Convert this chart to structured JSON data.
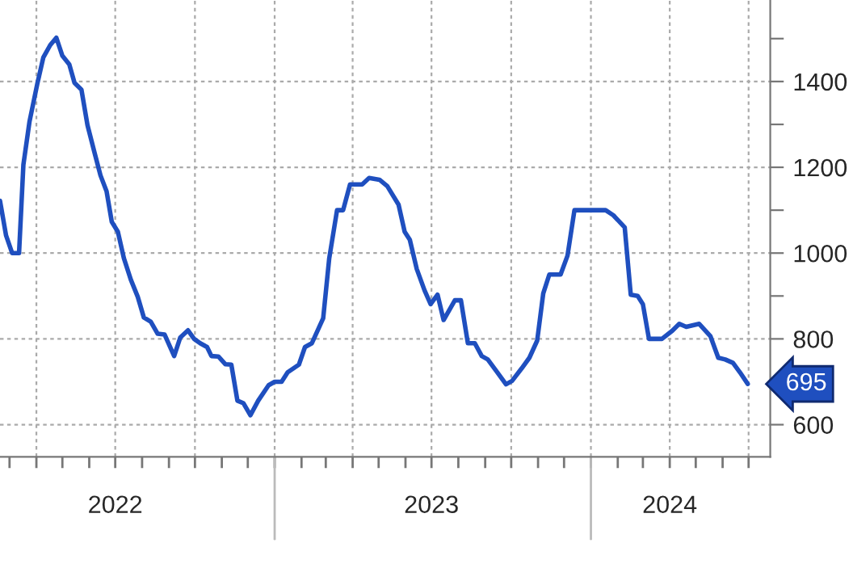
{
  "chart_data": {
    "type": "line",
    "x": [
      "2022-02-18",
      "2022-02-25",
      "2022-03-04",
      "2022-03-12",
      "2022-03-17",
      "2022-03-24",
      "2022-04-02",
      "2022-04-09",
      "2022-04-17",
      "2022-04-24",
      "2022-05-01",
      "2022-05-09",
      "2022-05-15",
      "2022-05-23",
      "2022-05-30",
      "2022-06-07",
      "2022-06-14",
      "2022-06-21",
      "2022-06-27",
      "2022-07-04",
      "2022-07-11",
      "2022-07-19",
      "2022-07-27",
      "2022-08-03",
      "2022-08-11",
      "2022-08-19",
      "2022-08-27",
      "2022-09-07",
      "2022-09-14",
      "2022-09-23",
      "2022-09-30",
      "2022-10-07",
      "2022-10-15",
      "2022-10-20",
      "2022-10-28",
      "2022-11-05",
      "2022-11-12",
      "2022-11-19",
      "2022-11-26",
      "2022-12-04",
      "2022-12-13",
      "2022-12-25",
      "2023-01-01",
      "2023-01-09",
      "2023-01-16",
      "2023-01-29",
      "2023-02-05",
      "2023-02-13",
      "2023-02-26",
      "2023-03-05",
      "2023-03-14",
      "2023-03-21",
      "2023-03-29",
      "2023-04-12",
      "2023-04-20",
      "2023-05-02",
      "2023-05-11",
      "2023-05-24",
      "2023-05-31",
      "2023-06-06",
      "2023-06-14",
      "2023-06-23",
      "2023-06-30",
      "2023-07-08",
      "2023-07-15",
      "2023-07-28",
      "2023-08-04",
      "2023-08-12",
      "2023-08-20",
      "2023-08-28",
      "2023-09-04",
      "2023-09-15",
      "2023-09-25",
      "2023-10-02",
      "2023-10-13",
      "2023-10-22",
      "2023-10-31",
      "2023-11-07",
      "2023-11-14",
      "2023-11-27",
      "2023-12-05",
      "2023-12-13",
      "2024-01-18",
      "2024-01-27",
      "2024-02-09",
      "2024-02-16",
      "2024-02-24",
      "2024-03-01",
      "2024-03-08",
      "2024-03-23",
      "2024-04-04",
      "2024-04-12",
      "2024-04-20",
      "2024-05-05",
      "2024-05-18",
      "2024-05-27",
      "2024-06-04",
      "2024-06-13",
      "2024-06-21",
      "2024-06-30"
    ],
    "series": [
      {
        "color": "#1f4fbf",
        "values": [
          1122,
          1041,
          1000,
          1000,
          1206,
          1306,
          1394,
          1456,
          1485,
          1502,
          1460,
          1440,
          1397,
          1381,
          1298,
          1235,
          1181,
          1144,
          1073,
          1050,
          988,
          938,
          898,
          850,
          840,
          812,
          810,
          760,
          803,
          820,
          800,
          790,
          781,
          760,
          759,
          741,
          740,
          656,
          650,
          622,
          656,
          692,
          700,
          700,
          722,
          740,
          781,
          790,
          848,
          988,
          1100,
          1100,
          1160,
          1160,
          1175,
          1171,
          1156,
          1113,
          1050,
          1031,
          963,
          913,
          881,
          903,
          844,
          890,
          890,
          790,
          790,
          760,
          752,
          722,
          694,
          702,
          731,
          756,
          796,
          906,
          950,
          950,
          994,
          1100,
          1100,
          1088,
          1060,
          903,
          900,
          881,
          800,
          800,
          819,
          835,
          828,
          835,
          806,
          756,
          752,
          744,
          722,
          695
        ]
      }
    ],
    "xlim": [
      "2022-02-18",
      "2024-07-26"
    ],
    "xticks": [
      {
        "value": "2022-03-01",
        "label": null
      },
      {
        "value": "2022-04-01",
        "label": null
      },
      {
        "value": "2022-05-01",
        "label": null
      },
      {
        "value": "2022-06-01",
        "label": null
      },
      {
        "value": "2022-07-01",
        "label": "2022"
      },
      {
        "value": "2022-08-01",
        "label": null
      },
      {
        "value": "2022-09-01",
        "label": null
      },
      {
        "value": "2022-10-01",
        "label": null
      },
      {
        "value": "2022-11-01",
        "label": null
      },
      {
        "value": "2022-12-01",
        "label": null
      },
      {
        "value": "2023-01-01",
        "label": null
      },
      {
        "value": "2023-02-01",
        "label": null
      },
      {
        "value": "2023-03-01",
        "label": null
      },
      {
        "value": "2023-04-01",
        "label": null
      },
      {
        "value": "2023-05-01",
        "label": null
      },
      {
        "value": "2023-06-01",
        "label": null
      },
      {
        "value": "2023-07-01",
        "label": "2023"
      },
      {
        "value": "2023-08-01",
        "label": null
      },
      {
        "value": "2023-09-01",
        "label": null
      },
      {
        "value": "2023-10-01",
        "label": null
      },
      {
        "value": "2023-11-01",
        "label": null
      },
      {
        "value": "2023-12-01",
        "label": null
      },
      {
        "value": "2024-01-01",
        "label": null
      },
      {
        "value": "2024-02-01",
        "label": null
      },
      {
        "value": "2024-03-01",
        "label": null
      },
      {
        "value": "2024-04-01",
        "label": "2024"
      },
      {
        "value": "2024-05-01",
        "label": null
      },
      {
        "value": "2024-06-01",
        "label": null
      },
      {
        "value": "2024-07-01",
        "label": null
      }
    ],
    "ylim": [
      525,
      1590
    ],
    "yticks": [
      600,
      {
        "value": 700,
        "label": null
      },
      800,
      {
        "value": 900,
        "label": null
      },
      1000,
      {
        "value": 1100,
        "label": null
      },
      1200,
      {
        "value": 1300,
        "label": null
      },
      1400,
      {
        "value": 1500,
        "label": null
      }
    ],
    "grid": true,
    "line_style": "solid",
    "marker": "none",
    "annotations": [
      {
        "text": "695",
        "x": "2024-06-30",
        "y": 695
      }
    ]
  }
}
